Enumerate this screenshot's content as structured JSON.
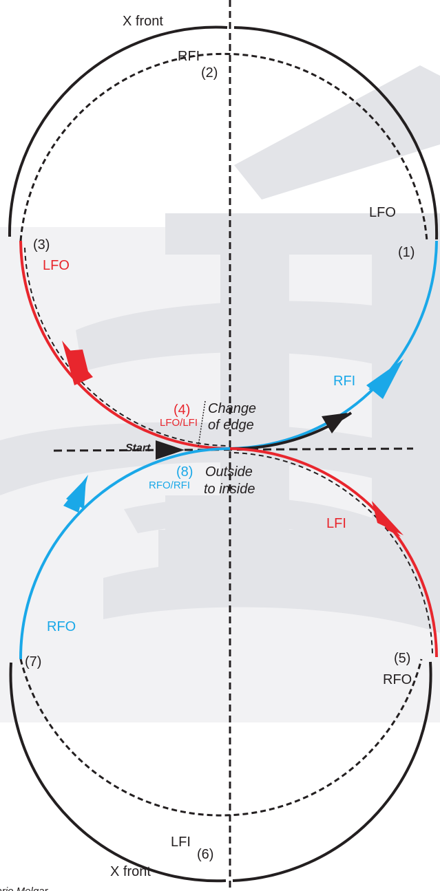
{
  "colors": {
    "black": "#231f20",
    "red": "#e8262d",
    "blue": "#1aa8e8",
    "watermark": "#e3e4e8"
  },
  "labels": {
    "x_front_top": "X front",
    "x_front_bottom": "X front",
    "rfi_top": "RFI",
    "n2": "(2)",
    "lfo_right": "LFO",
    "n1": "(1)",
    "n3": "(3)",
    "lfo_left": "LFO",
    "rfi_arrow": "RFI",
    "n4": "(4)",
    "lfo_lfi": "LFO/LFI",
    "change_of_edge_1": "Change",
    "change_of_edge_2": "of edge",
    "start": "Start",
    "n8": "(8)",
    "rfo_rfi": "RFO/RFI",
    "outside_to_inside_1": "Outside",
    "outside_to_inside_2": "to inside",
    "lfi_arrow": "LFI",
    "rfo_left": "RFO",
    "n7": "(7)",
    "n5": "(5)",
    "rfo_right": "RFO",
    "lfi_bottom": "LFI",
    "n6": "(6)",
    "credit": "Mario Melgar"
  }
}
